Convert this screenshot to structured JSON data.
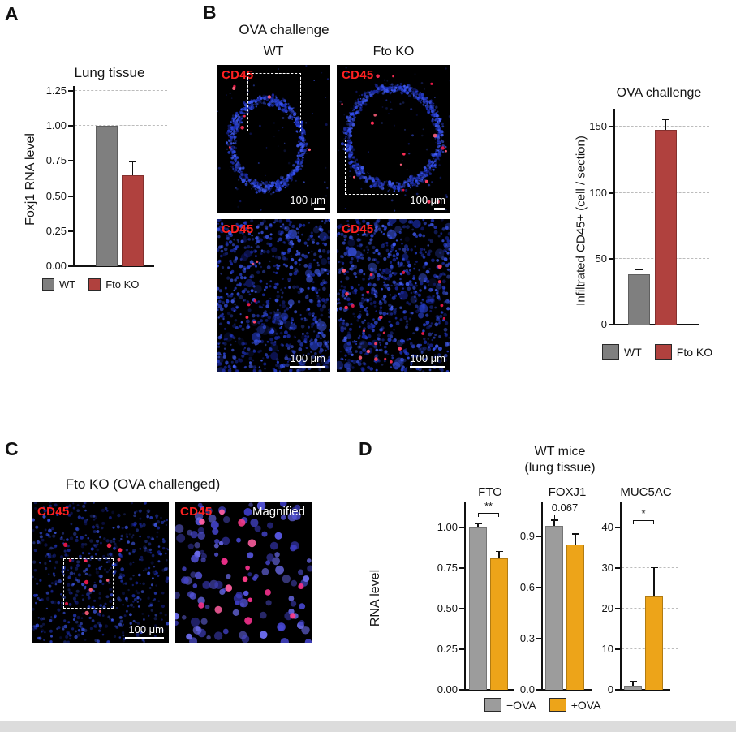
{
  "panels": {
    "a": {
      "label": "A",
      "title": "Lung tissue",
      "ylabel": "Foxj1 RNA level"
    },
    "b": {
      "label": "B",
      "title": "OVA challenge",
      "cols": [
        "WT",
        "Fto KO"
      ],
      "marker": "CD45",
      "scale": "100 μm",
      "chart_title": "OVA challenge",
      "chart_ylabel": "Infiltrated CD45+ (cell / section)"
    },
    "c": {
      "label": "C",
      "title": "Fto KO (OVA challenged)",
      "marker": "CD45",
      "scale": "100 μm",
      "magnified": "Magnified"
    },
    "d": {
      "label": "D",
      "title_line1": "WT mice",
      "title_line2": "(lung tissue)",
      "ylabel": "RNA level"
    }
  },
  "chart_data": [
    {
      "id": "panel-a",
      "type": "bar",
      "title": "Lung tissue",
      "ylabel": "Foxj1 RNA level",
      "categories": [
        "WT",
        "Fto KO"
      ],
      "values": [
        1.0,
        0.65
      ],
      "errors": [
        0,
        0.09
      ],
      "ylim": [
        0,
        1.25
      ],
      "ytick_values": [
        0,
        0.25,
        0.5,
        0.75,
        1.0,
        1.25
      ],
      "ytick_labels": [
        "0.00",
        "0.25",
        "0.50",
        "0.75",
        "1.00",
        "1.25"
      ],
      "gridlines": [
        1.0,
        1.25
      ],
      "grid": "dashed",
      "bar_colors": [
        "#7f7f7f",
        "#b0413e"
      ],
      "legend": [
        "WT",
        "Fto KO"
      ],
      "legend_position": "bottom"
    },
    {
      "id": "panel-b",
      "type": "bar",
      "title": "OVA challenge",
      "ylabel": "Infiltrated CD45+ (cell / section)",
      "categories": [
        "WT",
        "Fto KO"
      ],
      "values": [
        38,
        148
      ],
      "errors": [
        3,
        7
      ],
      "ylim": [
        0,
        160
      ],
      "ytick_values": [
        0,
        50,
        100,
        150
      ],
      "ytick_labels": [
        "0",
        "50",
        "100",
        "150"
      ],
      "gridlines": [
        50,
        100,
        150
      ],
      "grid": "dashed",
      "bar_colors": [
        "#7f7f7f",
        "#b0413e"
      ],
      "legend": [
        "WT",
        "Fto KO"
      ],
      "legend_position": "bottom"
    },
    {
      "id": "panel-d",
      "type": "bar",
      "title": "WT mice (lung tissue)",
      "ylabel": "RNA level",
      "categories": [
        "−OVA",
        "+OVA"
      ],
      "bar_colors": [
        "#9c9c9c",
        "#eda419"
      ],
      "legend": [
        "−OVA",
        "+OVA"
      ],
      "legend_position": "bottom",
      "subplots": [
        {
          "name": "FTO",
          "values": [
            1.0,
            0.81
          ],
          "errors": [
            0.02,
            0.04
          ],
          "ylim": [
            0,
            1.125
          ],
          "ytick_values": [
            0,
            0.25,
            0.5,
            0.75,
            1.0
          ],
          "ytick_labels": [
            "0.00",
            "0.25",
            "0.50",
            "0.75",
            "1.00"
          ],
          "gridlines": [
            1.0
          ],
          "significance": "**"
        },
        {
          "name": "FOXJ1",
          "values": [
            0.96,
            0.85
          ],
          "errors": [
            0.03,
            0.06
          ],
          "ylim": [
            0,
            1.07
          ],
          "ytick_values": [
            0,
            0.3,
            0.6,
            0.9
          ],
          "ytick_labels": [
            "0.0",
            "0.3",
            "0.6",
            "0.9"
          ],
          "gridlines": [
            0.9
          ],
          "significance": "0.067"
        },
        {
          "name": "MUC5AC",
          "values": [
            1,
            23
          ],
          "errors": [
            1,
            7
          ],
          "ylim": [
            0,
            45
          ],
          "ytick_values": [
            0,
            10,
            20,
            30,
            40
          ],
          "ytick_labels": [
            "0",
            "10",
            "20",
            "30",
            "40"
          ],
          "gridlines": [
            10,
            20,
            30,
            40
          ],
          "significance": "*"
        }
      ]
    }
  ]
}
